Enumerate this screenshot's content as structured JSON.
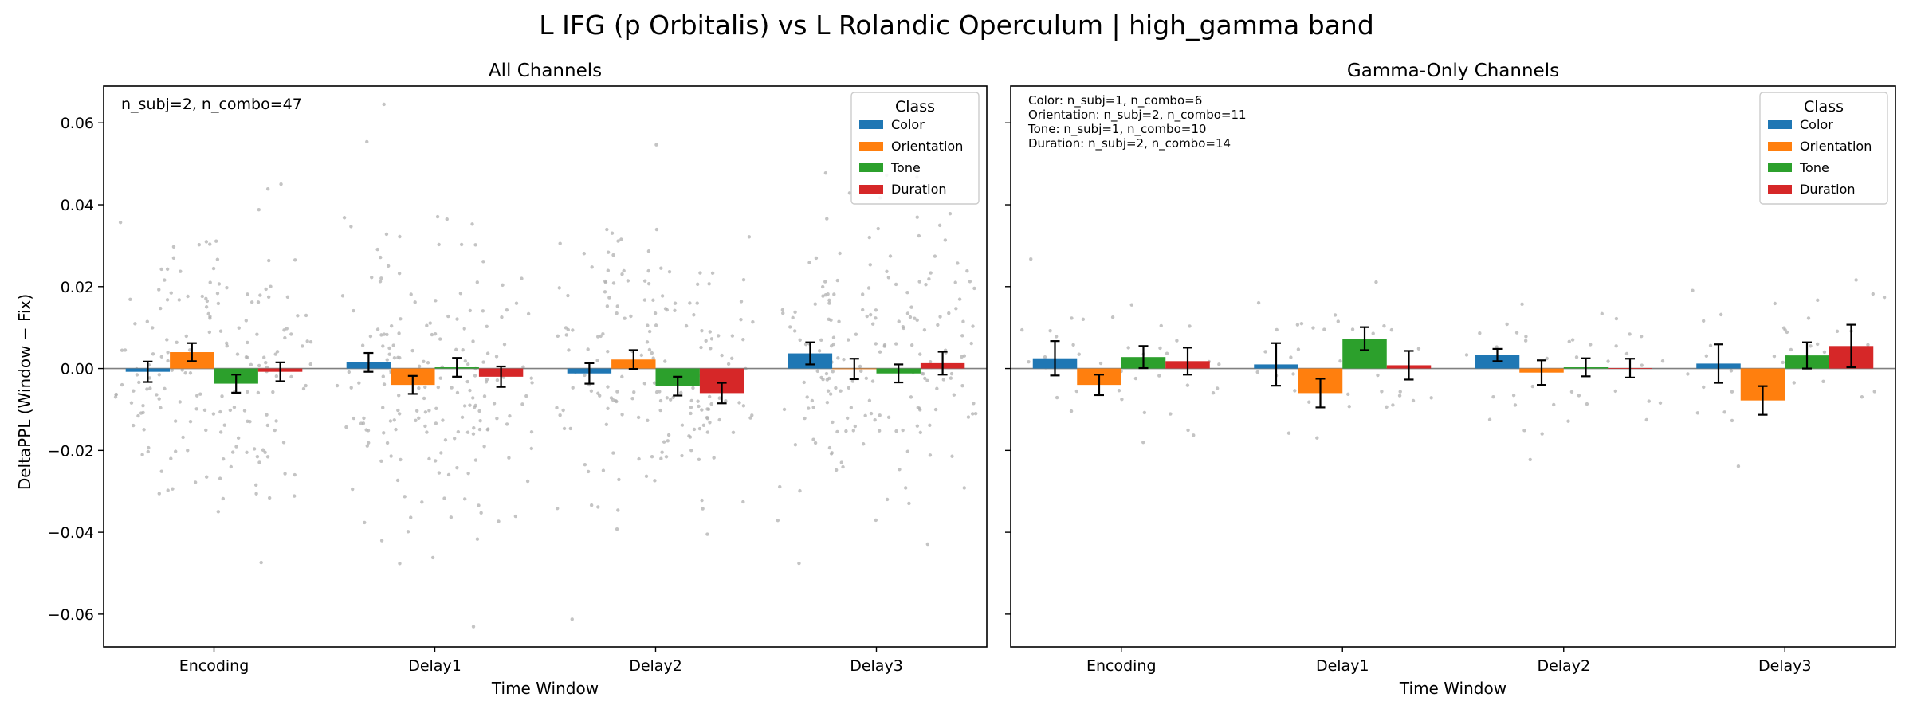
{
  "figure": {
    "title": "L IFG (p Orbitalis) vs L Rolandic Operculum  |  high_gamma band",
    "ylabel": "DeltaPPL (Window − Fix)"
  },
  "legend": {
    "title": "Class",
    "entries": [
      "Color",
      "Orientation",
      "Tone",
      "Duration"
    ]
  },
  "colors": {
    "Color": "#1f77b4",
    "Orientation": "#ff7f0e",
    "Tone": "#2ca02c",
    "Duration": "#d62728",
    "scatter": "#b0b0b0",
    "zero_line": "#808080"
  },
  "chart_data": [
    {
      "type": "bar",
      "title": "All Channels",
      "xlabel": "Time Window",
      "ylabel": "DeltaPPL (Window − Fix)",
      "categories": [
        "Encoding",
        "Delay1",
        "Delay2",
        "Delay3"
      ],
      "ylim": [
        -0.068,
        0.069
      ],
      "yticks": [
        -0.06,
        -0.04,
        -0.02,
        0.0,
        0.02,
        0.04,
        0.06
      ],
      "legend_position": "upper right",
      "annotation": [
        "n_subj=2, n_combo=47"
      ],
      "series": [
        {
          "name": "Color",
          "values": [
            -0.0008,
            0.0015,
            -0.0012,
            0.0037
          ],
          "errors": [
            0.0025,
            0.0023,
            0.0025,
            0.0027
          ]
        },
        {
          "name": "Orientation",
          "values": [
            0.004,
            -0.004,
            0.0022,
            -0.0001
          ],
          "errors": [
            0.0022,
            0.0022,
            0.0023,
            0.0025
          ]
        },
        {
          "name": "Tone",
          "values": [
            -0.0037,
            0.0003,
            -0.0043,
            -0.0012
          ],
          "errors": [
            0.0022,
            0.0023,
            0.0023,
            0.0022
          ]
        },
        {
          "name": "Duration",
          "values": [
            -0.0008,
            -0.002,
            -0.006,
            0.0013
          ],
          "errors": [
            0.0023,
            0.0025,
            0.0025,
            0.0028
          ]
        }
      ]
    },
    {
      "type": "bar",
      "title": "Gamma-Only Channels",
      "xlabel": "Time Window",
      "categories": [
        "Encoding",
        "Delay1",
        "Delay2",
        "Delay3"
      ],
      "ylim": [
        -0.068,
        0.069
      ],
      "legend_position": "upper right",
      "annotation": [
        "Color: n_subj=1, n_combo=6",
        "Orientation: n_subj=2, n_combo=11",
        "Tone: n_subj=1, n_combo=10",
        "Duration: n_subj=2, n_combo=14"
      ],
      "series": [
        {
          "name": "Color",
          "values": [
            0.0025,
            0.001,
            0.0033,
            0.0012
          ],
          "errors": [
            0.0042,
            0.0052,
            0.0015,
            0.0047
          ]
        },
        {
          "name": "Orientation",
          "values": [
            -0.004,
            -0.006,
            -0.001,
            -0.0078
          ],
          "errors": [
            0.0025,
            0.0035,
            0.003,
            0.0035
          ]
        },
        {
          "name": "Tone",
          "values": [
            0.0028,
            0.0073,
            0.0003,
            0.0032
          ],
          "errors": [
            0.0027,
            0.0028,
            0.0022,
            0.0032
          ]
        },
        {
          "name": "Duration",
          "values": [
            0.0018,
            0.0008,
            0.0001,
            0.0055
          ],
          "errors": [
            0.0033,
            0.0035,
            0.0023,
            0.0052
          ]
        }
      ]
    }
  ]
}
